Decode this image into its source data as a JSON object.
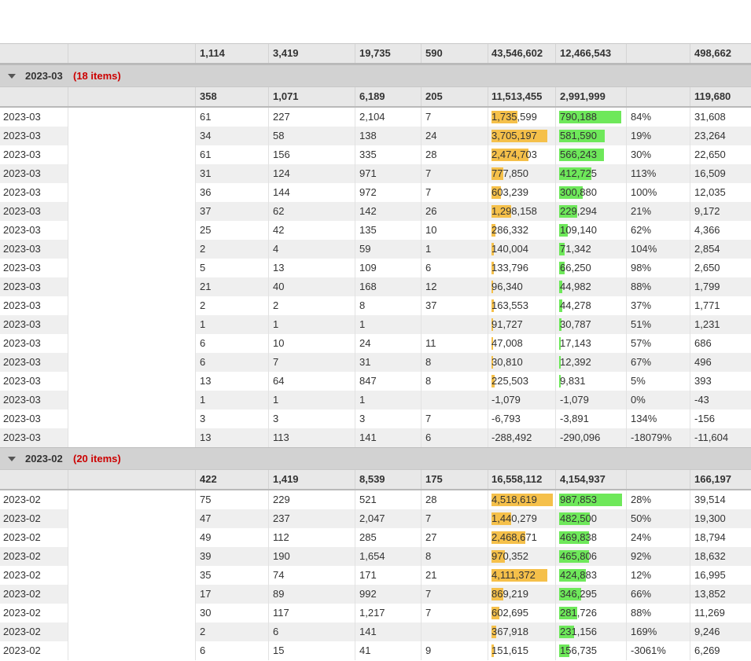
{
  "colors": {
    "revenue_bar": "#f5c04a",
    "profit_bar": "#6ee85a",
    "group_count": "#cc0000"
  },
  "grand_total": [
    "",
    "1,114",
    "3,419",
    "19,735",
    "590",
    "43,546,602",
    "12,466,543",
    "",
    "498,662"
  ],
  "groups": [
    {
      "label": "2023-03",
      "count_label": "(18 items)",
      "totals": [
        "",
        "358",
        "1,071",
        "6,189",
        "205",
        "11,513,455",
        "2,991,999",
        "",
        "119,680"
      ],
      "rows": [
        {
          "month": "2023-03",
          "c2": "61",
          "c3": "227",
          "c4": "2,104",
          "c5": "7",
          "c6": "1,735,599",
          "c7": "790,188",
          "c8": "84%",
          "c9": "31,608",
          "b6": 0.426,
          "b7": 0.988
        },
        {
          "month": "2023-03",
          "c2": "34",
          "c3": "58",
          "c4": "138",
          "c5": "24",
          "c6": "3,705,197",
          "c7": "581,590",
          "c8": "19%",
          "c9": "23,264",
          "b6": 0.91,
          "b7": 0.728
        },
        {
          "month": "2023-03",
          "c2": "61",
          "c3": "156",
          "c4": "335",
          "c5": "28",
          "c6": "2,474,703",
          "c7": "566,243",
          "c8": "30%",
          "c9": "22,650",
          "b6": 0.608,
          "b7": 0.709
        },
        {
          "month": "2023-03",
          "c2": "31",
          "c3": "124",
          "c4": "971",
          "c5": "7",
          "c6": "777,850",
          "c7": "412,725",
          "c8": "113%",
          "c9": "16,509",
          "b6": 0.191,
          "b7": 0.517
        },
        {
          "month": "2023-03",
          "c2": "36",
          "c3": "144",
          "c4": "972",
          "c5": "7",
          "c6": "603,239",
          "c7": "300,880",
          "c8": "100%",
          "c9": "12,035",
          "b6": 0.148,
          "b7": 0.377
        },
        {
          "month": "2023-03",
          "c2": "37",
          "c3": "62",
          "c4": "142",
          "c5": "26",
          "c6": "1,298,158",
          "c7": "229,294",
          "c8": "21%",
          "c9": "9,172",
          "b6": 0.319,
          "b7": 0.287
        },
        {
          "month": "2023-03",
          "c2": "25",
          "c3": "42",
          "c4": "135",
          "c5": "10",
          "c6": "286,332",
          "c7": "109,140",
          "c8": "62%",
          "c9": "4,366",
          "b6": 0.07,
          "b7": 0.137
        },
        {
          "month": "2023-03",
          "c2": "2",
          "c3": "4",
          "c4": "59",
          "c5": "1",
          "c6": "140,004",
          "c7": "71,342",
          "c8": "104%",
          "c9": "2,854",
          "b6": 0.034,
          "b7": 0.089
        },
        {
          "month": "2023-03",
          "c2": "5",
          "c3": "13",
          "c4": "109",
          "c5": "6",
          "c6": "133,796",
          "c7": "66,250",
          "c8": "98%",
          "c9": "2,650",
          "b6": 0.033,
          "b7": 0.083
        },
        {
          "month": "2023-03",
          "c2": "21",
          "c3": "40",
          "c4": "168",
          "c5": "12",
          "c6": "96,340",
          "c7": "44,982",
          "c8": "88%",
          "c9": "1,799",
          "b6": 0.024,
          "b7": 0.056
        },
        {
          "month": "2023-03",
          "c2": "2",
          "c3": "2",
          "c4": "8",
          "c5": "37",
          "c6": "163,553",
          "c7": "44,278",
          "c8": "37%",
          "c9": "1,771",
          "b6": 0.04,
          "b7": 0.055
        },
        {
          "month": "2023-03",
          "c2": "1",
          "c3": "1",
          "c4": "1",
          "c5": "",
          "c6": "91,727",
          "c7": "30,787",
          "c8": "51%",
          "c9": "1,231",
          "b6": 0.023,
          "b7": 0.039
        },
        {
          "month": "2023-03",
          "c2": "6",
          "c3": "10",
          "c4": "24",
          "c5": "11",
          "c6": "47,008",
          "c7": "17,143",
          "c8": "57%",
          "c9": "686",
          "b6": 0.012,
          "b7": 0.021
        },
        {
          "month": "2023-03",
          "c2": "6",
          "c3": "7",
          "c4": "31",
          "c5": "8",
          "c6": "30,810",
          "c7": "12,392",
          "c8": "67%",
          "c9": "496",
          "b6": 0.008,
          "b7": 0.016
        },
        {
          "month": "2023-03",
          "c2": "13",
          "c3": "64",
          "c4": "847",
          "c5": "8",
          "c6": "225,503",
          "c7": "9,831",
          "c8": "5%",
          "c9": "393",
          "b6": 0.055,
          "b7": 0.012
        },
        {
          "month": "2023-03",
          "c2": "1",
          "c3": "1",
          "c4": "1",
          "c5": "",
          "c6": "-1,079",
          "c7": "-1,079",
          "c8": "0%",
          "c9": "-43",
          "b6": 0,
          "b7": 0
        },
        {
          "month": "2023-03",
          "c2": "3",
          "c3": "3",
          "c4": "3",
          "c5": "7",
          "c6": "-6,793",
          "c7": "-3,891",
          "c8": "134%",
          "c9": "-156",
          "b6": 0,
          "b7": 0
        },
        {
          "month": "2023-03",
          "c2": "13",
          "c3": "113",
          "c4": "141",
          "c5": "6",
          "c6": "-288,492",
          "c7": "-290,096",
          "c8": "-18079%",
          "c9": "-11,604",
          "b6": 0,
          "b7": 0
        }
      ]
    },
    {
      "label": "2023-02",
      "count_label": "(20 items)",
      "totals": [
        "",
        "422",
        "1,419",
        "8,539",
        "175",
        "16,558,112",
        "4,154,937",
        "",
        "166,197"
      ],
      "rows": [
        {
          "month": "2023-02",
          "c2": "75",
          "c3": "229",
          "c4": "521",
          "c5": "28",
          "c6": "4,518,619",
          "c7": "987,853",
          "c8": "28%",
          "c9": "39,514",
          "b6": 1.0,
          "b7": 1.0
        },
        {
          "month": "2023-02",
          "c2": "47",
          "c3": "237",
          "c4": "2,047",
          "c5": "7",
          "c6": "1,440,279",
          "c7": "482,500",
          "c8": "50%",
          "c9": "19,300",
          "b6": 0.319,
          "b7": 0.488
        },
        {
          "month": "2023-02",
          "c2": "49",
          "c3": "112",
          "c4": "285",
          "c5": "27",
          "c6": "2,468,671",
          "c7": "469,838",
          "c8": "24%",
          "c9": "18,794",
          "b6": 0.546,
          "b7": 0.476
        },
        {
          "month": "2023-02",
          "c2": "39",
          "c3": "190",
          "c4": "1,654",
          "c5": "8",
          "c6": "970,352",
          "c7": "465,806",
          "c8": "92%",
          "c9": "18,632",
          "b6": 0.215,
          "b7": 0.472
        },
        {
          "month": "2023-02",
          "c2": "35",
          "c3": "74",
          "c4": "171",
          "c5": "21",
          "c6": "4,111,372",
          "c7": "424,883",
          "c8": "12%",
          "c9": "16,995",
          "b6": 0.91,
          "b7": 0.43
        },
        {
          "month": "2023-02",
          "c2": "17",
          "c3": "89",
          "c4": "992",
          "c5": "7",
          "c6": "869,219",
          "c7": "346,295",
          "c8": "66%",
          "c9": "13,852",
          "b6": 0.192,
          "b7": 0.351
        },
        {
          "month": "2023-02",
          "c2": "30",
          "c3": "117",
          "c4": "1,217",
          "c5": "7",
          "c6": "602,695",
          "c7": "281,726",
          "c8": "88%",
          "c9": "11,269",
          "b6": 0.133,
          "b7": 0.285
        },
        {
          "month": "2023-02",
          "c2": "2",
          "c3": "6",
          "c4": "141",
          "c5": "",
          "c6": "367,918",
          "c7": "231,156",
          "c8": "169%",
          "c9": "9,246",
          "b6": 0.081,
          "b7": 0.234
        },
        {
          "month": "2023-02",
          "c2": "6",
          "c3": "15",
          "c4": "41",
          "c5": "9",
          "c6": "151,615",
          "c7": "156,735",
          "c8": "-3061%",
          "c9": "6,269",
          "b6": 0.034,
          "b7": 0.159
        }
      ]
    }
  ]
}
